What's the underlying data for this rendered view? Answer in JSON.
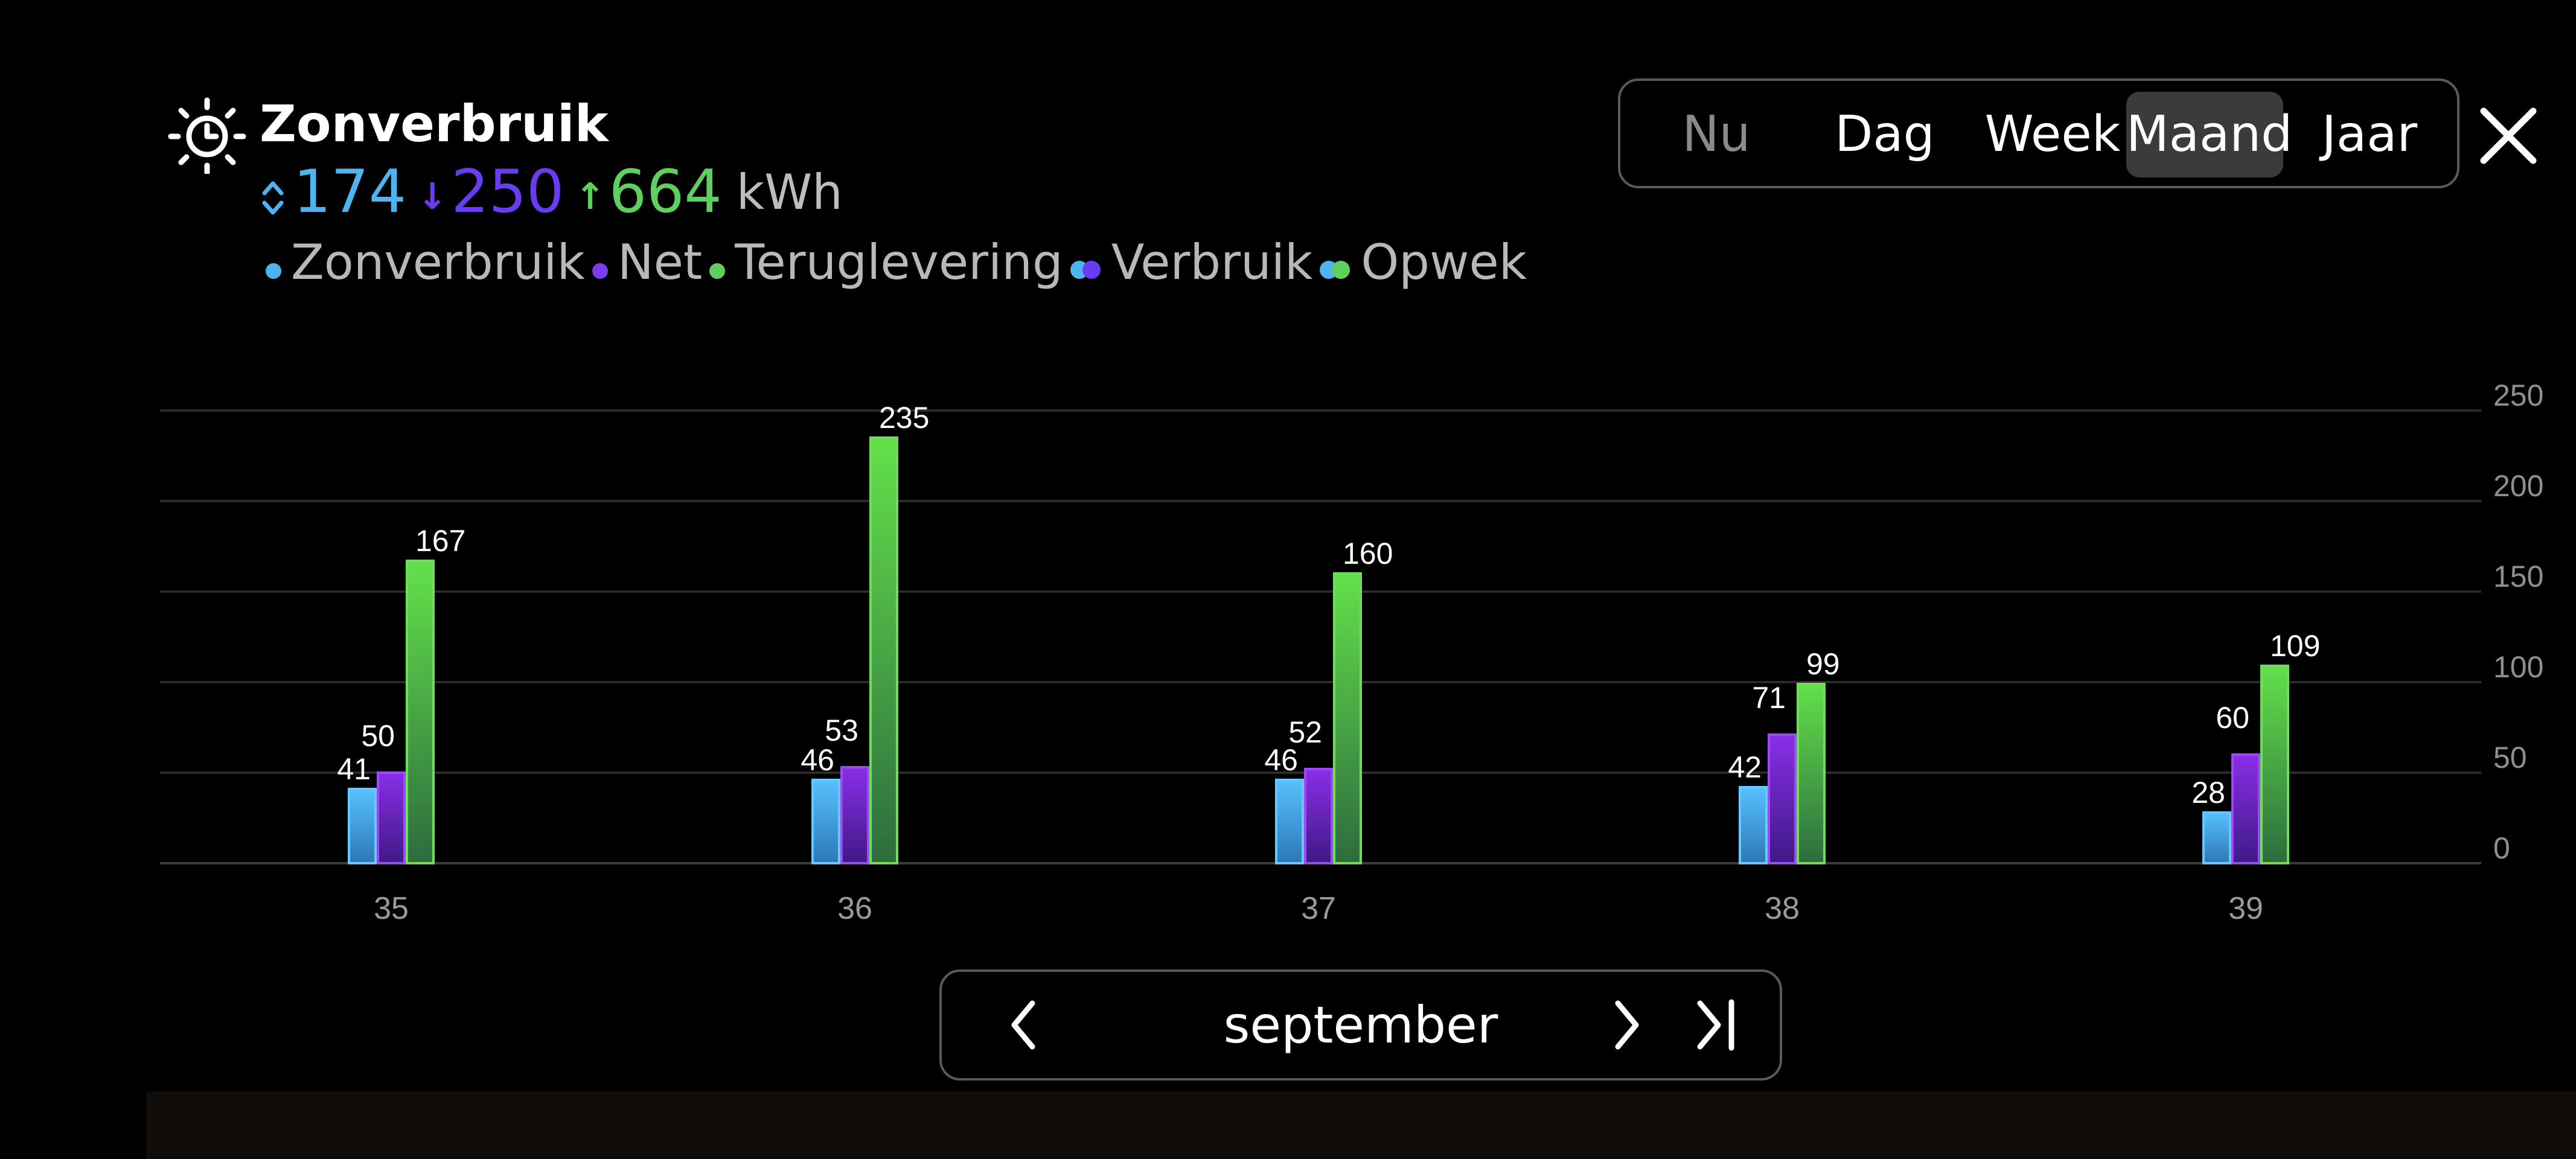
{
  "header": {
    "title": "Zonverbruik",
    "icon": "sun-clock-icon",
    "summary": {
      "self_use_value": "174",
      "grid_value": "250",
      "return_value": "664",
      "unit": "kWh"
    },
    "legend": [
      {
        "label": "Zonverbruik",
        "type": "dot",
        "colors": [
          "#4fb3f0"
        ]
      },
      {
        "label": "Net",
        "type": "dot",
        "colors": [
          "#7d3cf0"
        ]
      },
      {
        "label": "Teruglevering",
        "type": "dot",
        "colors": [
          "#5fcf5f"
        ]
      },
      {
        "label": "Verbruik",
        "type": "dual",
        "colors": [
          "#4fb3f0",
          "#6a3cf0"
        ]
      },
      {
        "label": "Opwek",
        "type": "dual",
        "colors": [
          "#4fb3f0",
          "#5fcf5f"
        ]
      }
    ]
  },
  "period_tabs": {
    "items": [
      "Nu",
      "Dag",
      "Week",
      "Maand",
      "Jaar"
    ],
    "active": "Maand",
    "disabled": "Nu"
  },
  "pager": {
    "label": "september"
  },
  "colors": {
    "zonverbruik": "#4fb3f0",
    "net": "#7d3cf0",
    "teruglevering": "#5fcf5f",
    "summary_blue": "#4fb3f0",
    "summary_purple": "#6a3cf0",
    "summary_green": "#5fcf5f"
  },
  "chart_data": {
    "type": "bar",
    "categories": [
      "35",
      "36",
      "37",
      "38",
      "39"
    ],
    "series": [
      {
        "name": "Zonverbruik",
        "values": [
          41,
          46,
          46,
          42,
          28
        ]
      },
      {
        "name": "Net",
        "values": [
          50,
          53,
          52,
          71,
          60
        ]
      },
      {
        "name": "Teruglevering",
        "values": [
          167,
          235,
          160,
          99,
          109
        ]
      }
    ],
    "y_ticks": [
      0,
      50,
      100,
      150,
      200,
      250
    ],
    "ylim": [
      0,
      250
    ],
    "grid": true,
    "legend_position": "top-left",
    "data_labels": true,
    "title": "",
    "xlabel": "",
    "ylabel": ""
  }
}
